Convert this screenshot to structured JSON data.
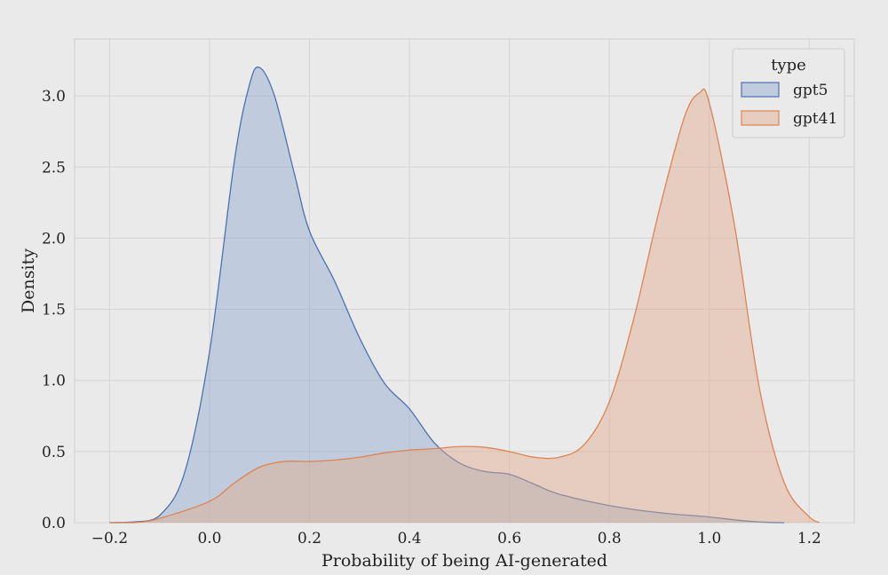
{
  "chart_data": {
    "type": "area",
    "title": "",
    "xlabel": "Probability of being AI-generated",
    "ylabel": "Density",
    "xlim": [
      -0.27,
      1.29
    ],
    "ylim": [
      0,
      3.4
    ],
    "xticks": [
      -0.2,
      0.0,
      0.2,
      0.4,
      0.6,
      0.8,
      1.0,
      1.2
    ],
    "xtick_labels": [
      "−0.2",
      "0.0",
      "0.2",
      "0.4",
      "0.6",
      "0.8",
      "1.0",
      "1.2"
    ],
    "yticks": [
      0.0,
      0.5,
      1.0,
      1.5,
      2.0,
      2.5,
      3.0
    ],
    "ytick_labels": [
      "0.0",
      "0.5",
      "1.0",
      "1.5",
      "2.0",
      "2.5",
      "3.0"
    ],
    "grid": true,
    "legend": {
      "title": "type",
      "position": "top-right"
    },
    "series": [
      {
        "name": "gpt5",
        "color": "#4c72b0",
        "fill": "#8fa8cf",
        "x": [
          -0.2,
          -0.15,
          -0.1,
          -0.05,
          0.0,
          0.05,
          0.08,
          0.1,
          0.13,
          0.17,
          0.2,
          0.25,
          0.3,
          0.35,
          0.4,
          0.45,
          0.5,
          0.55,
          0.6,
          0.65,
          0.7,
          0.8,
          0.9,
          1.0,
          1.05,
          1.1,
          1.15
        ],
        "y": [
          0.0,
          0.005,
          0.05,
          0.35,
          1.2,
          2.55,
          3.08,
          3.2,
          3.0,
          2.45,
          2.05,
          1.7,
          1.3,
          0.98,
          0.8,
          0.56,
          0.42,
          0.36,
          0.34,
          0.27,
          0.2,
          0.12,
          0.07,
          0.04,
          0.02,
          0.005,
          0.0
        ]
      },
      {
        "name": "gpt41",
        "color": "#dd8452",
        "fill": "#e2aa8b",
        "x": [
          -0.2,
          -0.15,
          -0.1,
          0.0,
          0.05,
          0.1,
          0.15,
          0.2,
          0.25,
          0.3,
          0.35,
          0.4,
          0.45,
          0.5,
          0.55,
          0.6,
          0.65,
          0.7,
          0.75,
          0.8,
          0.85,
          0.9,
          0.95,
          0.98,
          1.0,
          1.05,
          1.1,
          1.15,
          1.2,
          1.22
        ],
        "y": [
          0.0,
          0.0,
          0.03,
          0.15,
          0.28,
          0.39,
          0.43,
          0.43,
          0.44,
          0.46,
          0.49,
          0.51,
          0.52,
          0.535,
          0.53,
          0.5,
          0.46,
          0.46,
          0.55,
          0.85,
          1.45,
          2.2,
          2.85,
          3.02,
          2.95,
          2.1,
          0.95,
          0.28,
          0.04,
          0.0
        ]
      }
    ]
  }
}
